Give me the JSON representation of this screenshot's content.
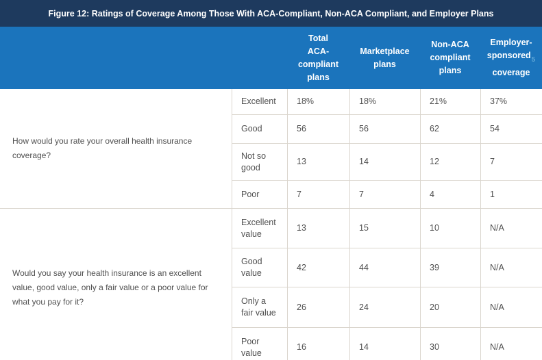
{
  "figure_title": "Figure 12: Ratings of Coverage Among Those With ACA-Compliant, Non-ACA Compliant, and Employer Plans",
  "header": {
    "columns": [
      {
        "name": "Total ACA-compliant plans",
        "lines": [
          "Total",
          "ACA-",
          "compliant",
          "plans"
        ]
      },
      {
        "name": "Marketplace plans",
        "lines": [
          "Marketplace",
          "plans"
        ]
      },
      {
        "name": "Non-ACA compliant plans",
        "lines": [
          "Non-ACA",
          "compliant",
          "plans"
        ]
      },
      {
        "name": "Employer-sponsored coverage",
        "lines": [
          "Employer-",
          "sponsored",
          "coverage"
        ],
        "footnote": "5"
      }
    ]
  },
  "chart_data": {
    "type": "table",
    "title": "Figure 12: Ratings of Coverage Among Those With ACA-Compliant, Non-ACA Compliant, and Employer Plans",
    "columns": [
      "Total ACA-compliant plans",
      "Marketplace plans",
      "Non-ACA compliant plans",
      "Employer-sponsored coverage"
    ],
    "sections": [
      {
        "question": "How would you rate your overall health insurance\ncoverage?",
        "rows": [
          {
            "label": "Excellent",
            "values": [
              "18%",
              "18%",
              "21%",
              "37%"
            ]
          },
          {
            "label": "Good",
            "values": [
              "56",
              "56",
              "62",
              "54"
            ]
          },
          {
            "label": "Not so\ngood",
            "values": [
              "13",
              "14",
              "12",
              "7"
            ]
          },
          {
            "label": "Poor",
            "values": [
              "7",
              "7",
              "4",
              "1"
            ]
          }
        ]
      },
      {
        "question": "Would you say your health insurance is an excellent\nvalue, good value, only a fair value or a poor value for\nwhat you pay for it?",
        "rows": [
          {
            "label": "Excellent\nvalue",
            "values": [
              "13",
              "15",
              "10",
              "N/A"
            ]
          },
          {
            "label": "Good\nvalue",
            "values": [
              "42",
              "44",
              "39",
              "N/A"
            ]
          },
          {
            "label": "Only a\nfair value",
            "values": [
              "26",
              "24",
              "20",
              "N/A"
            ]
          },
          {
            "label": "Poor\nvalue",
            "values": [
              "16",
              "14",
              "30",
              "N/A"
            ]
          }
        ]
      }
    ]
  },
  "colors": {
    "title_bar_bg": "#1e3a5e",
    "header_bg": "#1b74bc",
    "border": "#dad5cd",
    "text": "#4f4f4f",
    "footnote": "#5ea6d6"
  }
}
